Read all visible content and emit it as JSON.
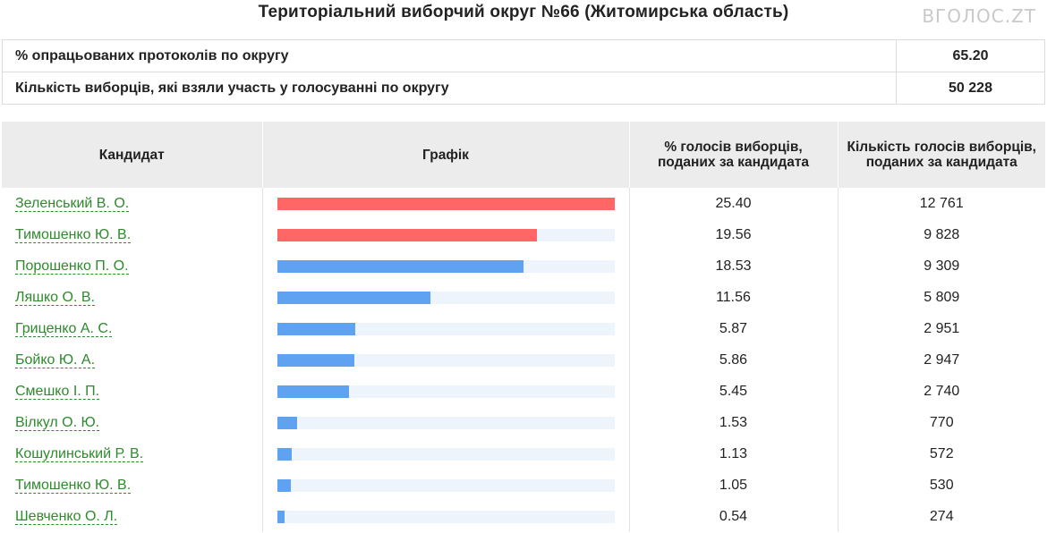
{
  "title": "Територіальний виборчий округ №66 (Житомирська область)",
  "watermark": "ВГОЛОС.ZT",
  "summary": [
    {
      "label": "% опрацьованих протоколів по округу",
      "value": "65.20"
    },
    {
      "label": "Кількість виборців, які взяли участь у голосуванні по округу",
      "value": "50 228"
    }
  ],
  "headers": {
    "candidate": "Кандидат",
    "chart": "Графік",
    "percent": "% голосів виборців, поданих за кандидата",
    "votes": "Кількість голосів виборців, поданих за кандидата"
  },
  "colors": {
    "top": "#ff6666",
    "rest": "#5fa2f2",
    "track": "#eef4fb",
    "link": "#2d8a2d"
  },
  "chart_data": {
    "type": "bar",
    "max_value": 25.4,
    "top_highlight_count": 2,
    "categories": [
      "Зеленський В. О.",
      "Тимошенко Ю. В.",
      "Порошенко П. О.",
      "Ляшко О. В.",
      "Гриценко А. С.",
      "Бойко Ю. А.",
      "Смешко І. П.",
      "Вілкул О. Ю.",
      "Кошулинський Р. В.",
      "Тимошенко Ю. В.",
      "Шевченко О. Л."
    ],
    "values": [
      25.4,
      19.56,
      18.53,
      11.56,
      5.87,
      5.86,
      5.45,
      1.53,
      1.13,
      1.05,
      0.54
    ]
  },
  "rows": [
    {
      "name": "Зеленський В. О.",
      "percent": "25.40",
      "votes": "12 761"
    },
    {
      "name": "Тимошенко Ю. В.",
      "percent": "19.56",
      "votes": "9 828"
    },
    {
      "name": "Порошенко П. О.",
      "percent": "18.53",
      "votes": "9 309"
    },
    {
      "name": "Ляшко О. В.",
      "percent": "11.56",
      "votes": "5 809"
    },
    {
      "name": "Гриценко А. С.",
      "percent": "5.87",
      "votes": "2 951"
    },
    {
      "name": "Бойко Ю. А.",
      "percent": "5.86",
      "votes": "2 947"
    },
    {
      "name": "Смешко І. П.",
      "percent": "5.45",
      "votes": "2 740"
    },
    {
      "name": "Вілкул О. Ю.",
      "percent": "1.53",
      "votes": "770"
    },
    {
      "name": "Кошулинський Р. В.",
      "percent": "1.13",
      "votes": "572"
    },
    {
      "name": "Тимошенко Ю. В.",
      "percent": "1.05",
      "votes": "530"
    },
    {
      "name": "Шевченко О. Л.",
      "percent": "0.54",
      "votes": "274"
    }
  ]
}
